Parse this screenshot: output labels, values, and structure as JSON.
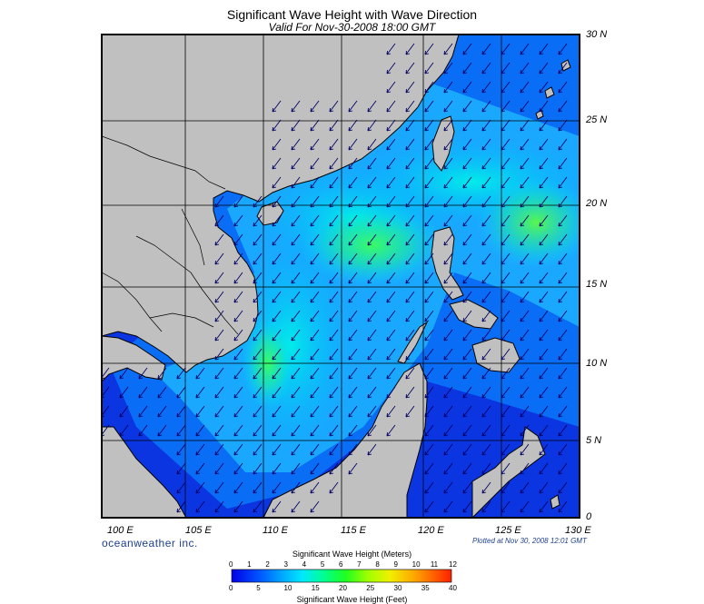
{
  "header": {
    "title": "Significant Wave Height with Wave Direction",
    "subtitle": "Valid For Nov-30-2008 18:00 GMT"
  },
  "axes": {
    "latitude_labels": [
      "30 N",
      "25 N",
      "20 N",
      "15 N",
      "10 N",
      "5 N",
      "0"
    ],
    "longitude_labels": [
      "100 E",
      "105 E",
      "110 E",
      "115 E",
      "120 E",
      "125 E",
      "130 E"
    ],
    "lat_range": [
      0,
      30
    ],
    "lon_range": [
      100,
      130
    ]
  },
  "footer": {
    "brand": "oceanweather inc.",
    "plotted": "Plotted at Nov 30, 2008 12:01 GMT"
  },
  "colorbar": {
    "title_meters": "Significant Wave Height (Meters)",
    "title_feet": "Significant Wave Height (Feet)",
    "meter_ticks": [
      "0",
      "1",
      "2",
      "3",
      "4",
      "5",
      "6",
      "7",
      "8",
      "9",
      "10",
      "11",
      "12"
    ],
    "feet_ticks": [
      "0",
      "5",
      "10",
      "15",
      "20",
      "25",
      "30",
      "35",
      "40"
    ],
    "colors": [
      "#0000e6",
      "#0050ff",
      "#00a0ff",
      "#00ffe0",
      "#00ff60",
      "#60ff00",
      "#d0ff00",
      "#ffd000",
      "#ff8000",
      "#ff2000"
    ]
  },
  "map": {
    "land_color": "#c0c0c0",
    "deep_blue": "#0a2fd8",
    "wave_direction": "from northeast toward southwest"
  }
}
